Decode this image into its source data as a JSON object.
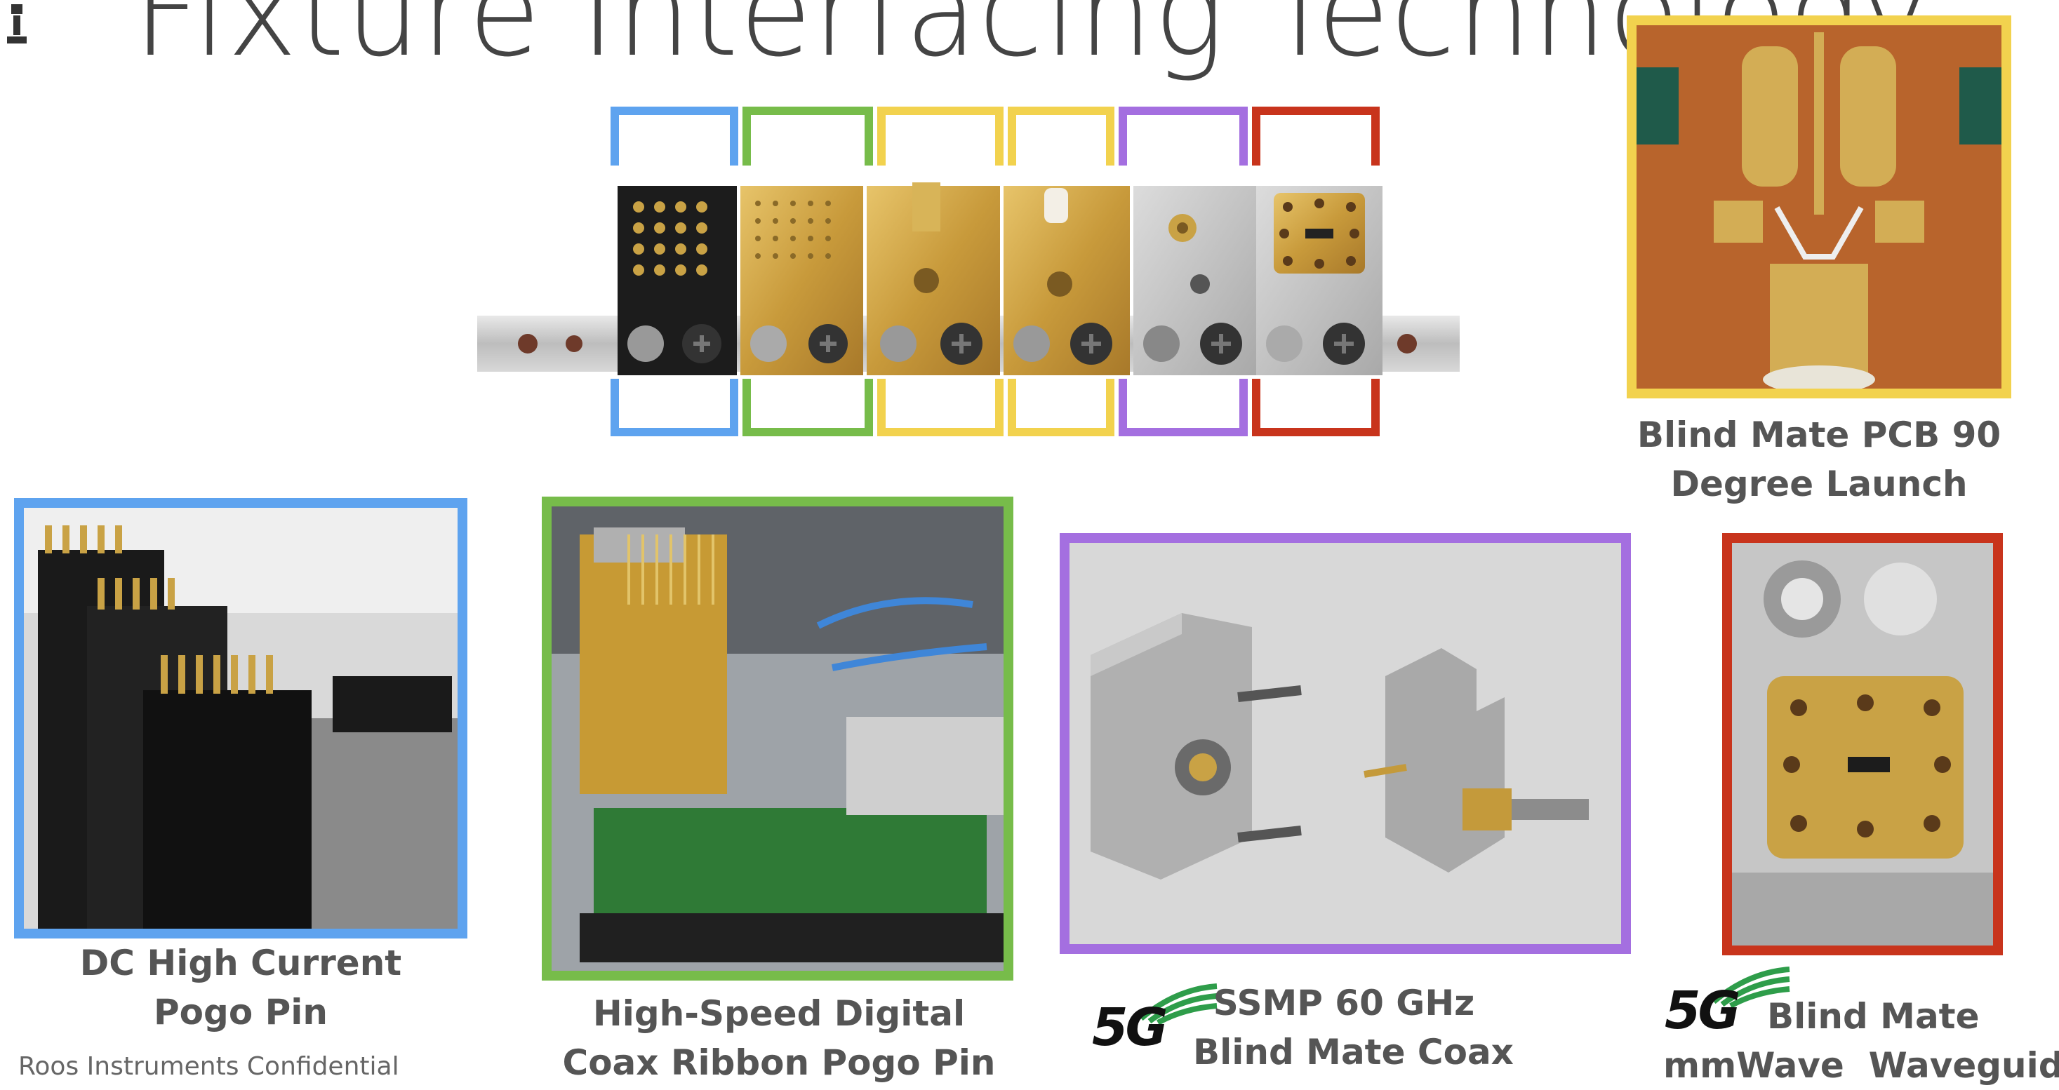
{
  "slide": {
    "title": "Fixture Interfacing Technology",
    "footer": "Roos Instruments Confidential"
  },
  "colors": {
    "blue": "#5ea3ef",
    "green": "#77bc4a",
    "yellow": "#f2d24e",
    "purple": "#a46fe0",
    "red": "#c8341c"
  },
  "panels": {
    "dc": {
      "line1": "DC High Current",
      "line2": "Pogo Pin"
    },
    "digital": {
      "line1": "High-Speed Digital",
      "line2": "Coax Ribbon Pogo Pin"
    },
    "ssmp": {
      "line1": "SSMP 60 GHz",
      "line2": "Blind Mate Coax",
      "badge": "5G"
    },
    "waveguide": {
      "line1": "Blind Mate",
      "line2": "mmWave  Waveguide",
      "badge": "5G"
    },
    "pcb": {
      "line1": "Blind Mate PCB 90",
      "line2": "Degree Launch"
    }
  },
  "icons": [
    "company-logo-icon",
    "5g-badge-icon"
  ]
}
